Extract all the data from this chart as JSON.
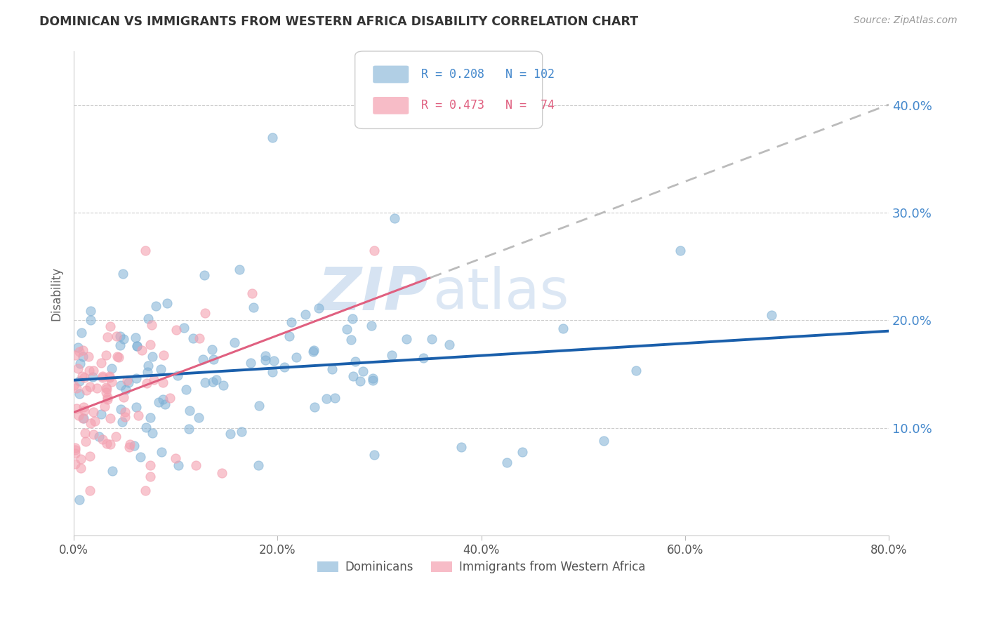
{
  "title": "DOMINICAN VS IMMIGRANTS FROM WESTERN AFRICA DISABILITY CORRELATION CHART",
  "source": "Source: ZipAtlas.com",
  "ylabel": "Disability",
  "xlim": [
    0.0,
    0.8
  ],
  "ylim": [
    0.0,
    0.45
  ],
  "yticks": [
    0.1,
    0.2,
    0.3,
    0.4
  ],
  "ytick_labels": [
    "10.0%",
    "20.0%",
    "30.0%",
    "40.0%"
  ],
  "xticks": [
    0.0,
    0.2,
    0.4,
    0.6,
    0.8
  ],
  "xtick_labels": [
    "0.0%",
    "20.0%",
    "40.0%",
    "60.0%",
    "80.0%"
  ],
  "blue_color": "#7EB0D5",
  "pink_color": "#F4A0B0",
  "blue_line_color": "#1A5FAB",
  "pink_line_color": "#E06080",
  "blue_R": 0.208,
  "blue_N": 102,
  "pink_R": 0.473,
  "pink_N": 74,
  "legend_label_blue": "Dominicans",
  "legend_label_pink": "Immigrants from Western Africa",
  "watermark_zip": "ZIP",
  "watermark_atlas": "atlas",
  "background_color": "#ffffff",
  "grid_color": "#cccccc",
  "title_color": "#333333",
  "ytick_color": "#4488CC",
  "xtick_color": "#555555",
  "source_color": "#999999"
}
